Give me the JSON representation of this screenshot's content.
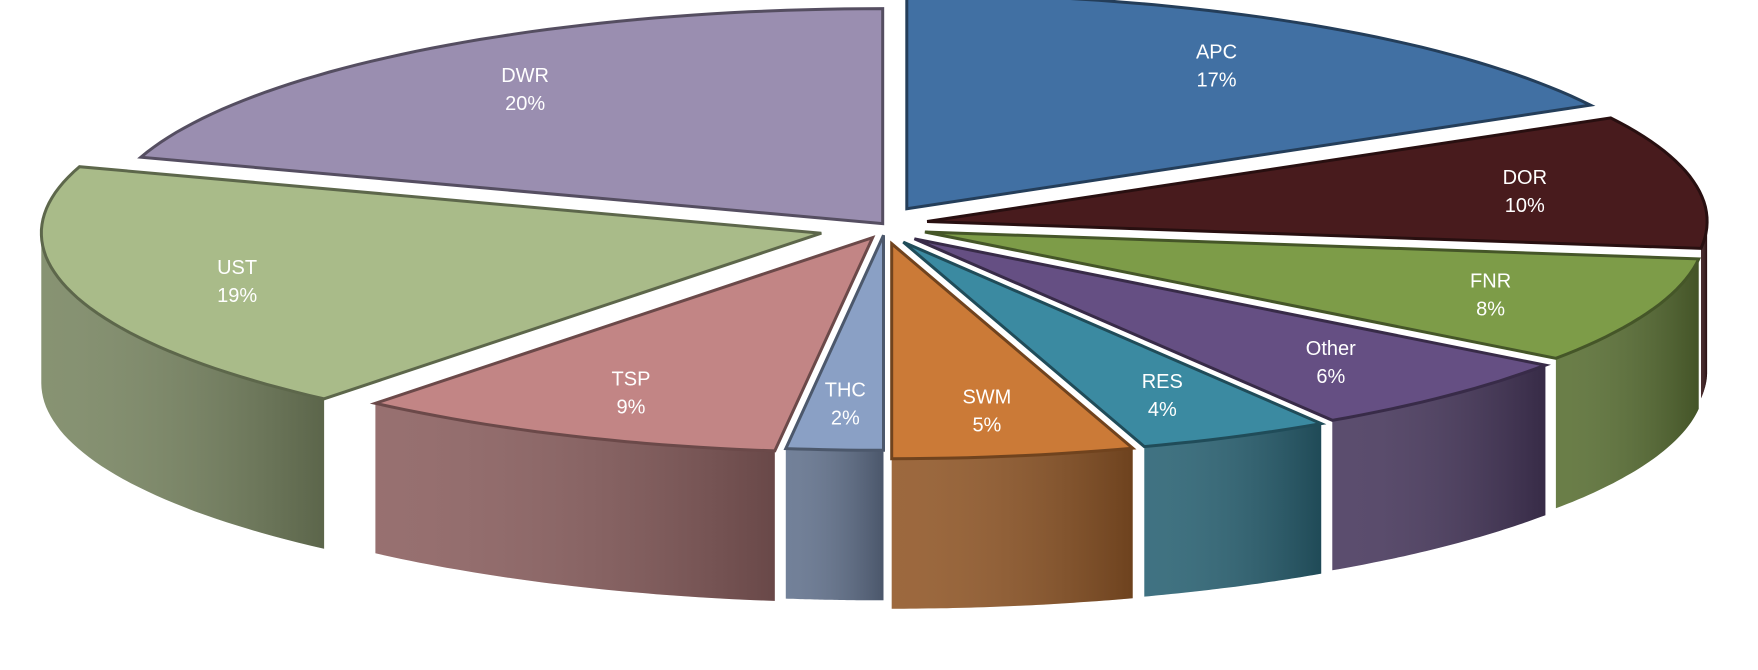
{
  "chart_data": {
    "type": "pie",
    "style": "3d-exploded",
    "slices": [
      {
        "label": "APC",
        "value": 17,
        "display": "17%",
        "color": "#4170a3",
        "explode": 0.055
      },
      {
        "label": "DOR",
        "value": 10,
        "display": "10%",
        "color": "#481b1d",
        "explode": 0.055
      },
      {
        "label": "FNR",
        "value": 8,
        "display": "8%",
        "color": "#7d9c48",
        "explode": 0.055
      },
      {
        "label": "Other",
        "value": 6,
        "display": "6%",
        "color": "#654f83",
        "explode": 0.055
      },
      {
        "label": "RES",
        "value": 4,
        "display": "4%",
        "color": "#3b8aa1",
        "explode": 0.055
      },
      {
        "label": "SWM",
        "value": 5,
        "display": "5%",
        "color": "#cb7a37",
        "explode": 0.055
      },
      {
        "label": "THC",
        "value": 2,
        "display": "2%",
        "color": "#8aa0c5",
        "explode": 0.03
      },
      {
        "label": "TSP",
        "value": 9,
        "display": "9%",
        "color": "#c28585",
        "explode": 0.04
      },
      {
        "label": "UST",
        "value": 19,
        "display": "19%",
        "color": "#a9bb89",
        "explode": 0.085
      },
      {
        "label": "DWR",
        "value": 20,
        "display": "20%",
        "color": "#9a8eb0",
        "explode": 0.005
      }
    ],
    "start_angle_deg": -90,
    "direction": "clockwise",
    "legend": "none",
    "data_labels": "category-and-percent"
  }
}
